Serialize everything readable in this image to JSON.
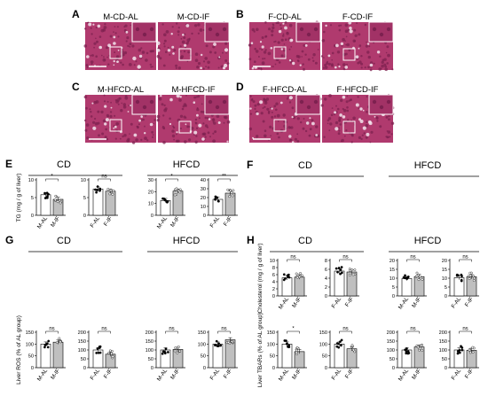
{
  "figure": {
    "panels": {
      "A": {
        "letter": "A",
        "images": [
          "M-CD-AL",
          "M-CD-IF"
        ]
      },
      "B": {
        "letter": "B",
        "images": [
          "F-CD-AL",
          "F-CD-IF"
        ]
      },
      "C": {
        "letter": "C",
        "images": [
          "M-HFCD-AL",
          "M-HFCD-IF"
        ]
      },
      "D": {
        "letter": "D",
        "images": [
          "F-HFCD-AL",
          "F-HFCD-IF"
        ]
      },
      "E": {
        "letter": "E",
        "groups": [
          "CD",
          "HFCD"
        ]
      },
      "F": {
        "letter": "F",
        "groups": [
          "CD",
          "HFCD"
        ]
      },
      "G": {
        "letter": "G",
        "groups": [
          "CD",
          "HFCD"
        ]
      },
      "H": {
        "letter": "H",
        "groups": [
          "CD",
          "HFCD"
        ]
      }
    },
    "colors": {
      "al_bar": "#ffffff",
      "if_bar": "#bfbfbf",
      "stain": "#b03a6e",
      "stain_dark": "#7d2150"
    }
  },
  "chart_data": [
    {
      "panel": "E",
      "type": "bar",
      "ylabel": "TG (mg / g of liver)",
      "ylim": [
        0,
        10
      ],
      "yticks": [
        0,
        5,
        10
      ],
      "categories": [
        "M-AL",
        "M-IF"
      ],
      "values": [
        5.8,
        4.5
      ],
      "sig": "*",
      "group": "CD"
    },
    {
      "panel": "E",
      "type": "bar",
      "ylim": [
        0,
        10
      ],
      "yticks": [
        0,
        5,
        10
      ],
      "categories": [
        "F-AL",
        "F-IF"
      ],
      "values": [
        7.4,
        6.8
      ],
      "sig": "ns",
      "group": "CD"
    },
    {
      "panel": "E",
      "type": "bar",
      "ylim": [
        0,
        30
      ],
      "yticks": [
        0,
        10,
        20,
        30
      ],
      "categories": [
        "M-AL",
        "M-IF"
      ],
      "values": [
        12.5,
        20.5
      ],
      "sig": "*",
      "group": "HFCD"
    },
    {
      "panel": "E",
      "type": "bar",
      "ylim": [
        0,
        40
      ],
      "yticks": [
        0,
        10,
        20,
        30,
        40
      ],
      "categories": [
        "F-AL",
        "F-IF"
      ],
      "values": [
        18,
        25
      ],
      "sig": "**",
      "group": "HFCD"
    },
    {
      "panel": "F",
      "type": "bar",
      "ylabel": "Cholesterol (mg / g of liver)",
      "ylim": [
        0,
        10
      ],
      "yticks": [
        0,
        2,
        4,
        6,
        8,
        10
      ],
      "categories": [
        "M-AL",
        "M-IF"
      ],
      "values": [
        5.1,
        5.3
      ],
      "sig": "ns",
      "group": "CD"
    },
    {
      "panel": "F",
      "type": "bar",
      "ylim": [
        0,
        8
      ],
      "yticks": [
        0,
        2,
        4,
        6,
        8
      ],
      "categories": [
        "F-AL",
        "F-IF"
      ],
      "values": [
        5.6,
        5.4
      ],
      "sig": "ns",
      "group": "CD"
    },
    {
      "panel": "F",
      "type": "bar",
      "ylim": [
        0,
        20
      ],
      "yticks": [
        0,
        5,
        10,
        15,
        20
      ],
      "categories": [
        "M-AL",
        "M-IF"
      ],
      "values": [
        9.8,
        10.9
      ],
      "sig": "ns",
      "group": "HFCD"
    },
    {
      "panel": "F",
      "type": "bar",
      "ylim": [
        0,
        20
      ],
      "yticks": [
        0,
        5,
        10,
        15,
        20
      ],
      "categories": [
        "F-AL",
        "F-IF"
      ],
      "values": [
        10.3,
        10.8
      ],
      "sig": "ns",
      "group": "HFCD"
    },
    {
      "panel": "G",
      "type": "bar",
      "ylabel": "Liver ROS (% of AL group)",
      "ylim": [
        0,
        150
      ],
      "yticks": [
        0,
        50,
        100,
        150
      ],
      "categories": [
        "M-AL",
        "M-IF"
      ],
      "values": [
        100,
        108
      ],
      "sig": "ns",
      "group": "CD"
    },
    {
      "panel": "G",
      "type": "bar",
      "ylim": [
        0,
        200
      ],
      "yticks": [
        0,
        50,
        100,
        150,
        200
      ],
      "categories": [
        "F-AL",
        "F-IF"
      ],
      "values": [
        100,
        76
      ],
      "sig": "ns",
      "group": "CD"
    },
    {
      "panel": "G",
      "type": "bar",
      "ylim": [
        0,
        200
      ],
      "yticks": [
        0,
        50,
        100,
        150,
        200
      ],
      "categories": [
        "M-AL",
        "M-IF"
      ],
      "values": [
        100,
        103
      ],
      "sig": "ns",
      "group": "HFCD"
    },
    {
      "panel": "G",
      "type": "bar",
      "ylim": [
        0,
        150
      ],
      "yticks": [
        0,
        50,
        100,
        150
      ],
      "categories": [
        "F-AL",
        "F-IF"
      ],
      "values": [
        100,
        118
      ],
      "sig": "ns",
      "group": "HFCD"
    },
    {
      "panel": "H",
      "type": "bar",
      "ylabel": "Liver TBARs (% of AL group)",
      "ylim": [
        0,
        150
      ],
      "yticks": [
        0,
        50,
        100,
        150
      ],
      "categories": [
        "M-AL",
        "M-IF"
      ],
      "values": [
        100,
        68
      ],
      "sig": "*",
      "group": "CD"
    },
    {
      "panel": "H",
      "type": "bar",
      "ylim": [
        0,
        150
      ],
      "yticks": [
        0,
        50,
        100,
        150
      ],
      "categories": [
        "F-AL",
        "F-IF"
      ],
      "values": [
        100,
        80
      ],
      "sig": "ns",
      "group": "CD"
    },
    {
      "panel": "H",
      "type": "bar",
      "ylim": [
        0,
        200
      ],
      "yticks": [
        0,
        50,
        100,
        150,
        200
      ],
      "categories": [
        "M-AL",
        "M-IF"
      ],
      "values": [
        100,
        117
      ],
      "sig": "ns",
      "group": "HFCD"
    },
    {
      "panel": "H",
      "type": "bar",
      "ylim": [
        0,
        200
      ],
      "yticks": [
        0,
        50,
        100,
        150,
        200
      ],
      "categories": [
        "F-AL",
        "F-IF"
      ],
      "values": [
        100,
        98
      ],
      "sig": "ns",
      "group": "HFCD"
    }
  ]
}
